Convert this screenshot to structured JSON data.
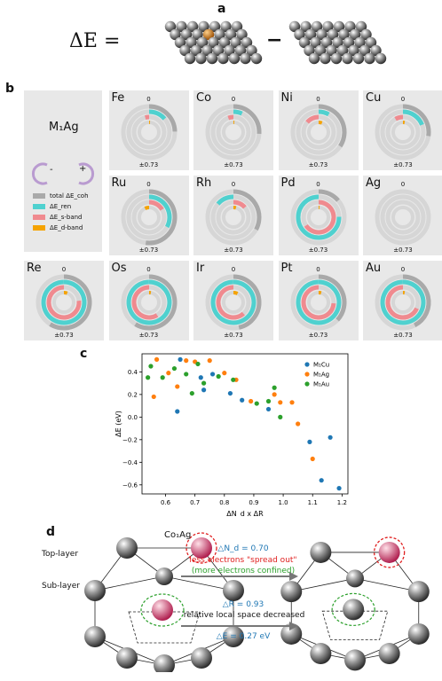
{
  "panel_a": {
    "label": "a",
    "equation_lhs": "ΔE =",
    "minus": "−"
  },
  "panel_b": {
    "label": "b",
    "legend_title": "M₁Ag",
    "legend_minus": "-",
    "legend_plus": "+",
    "legend_items": [
      {
        "label": "total ΔE_coh",
        "color": "#a9a9a9"
      },
      {
        "label": "ΔE_ren",
        "color": "#4fd1cf"
      },
      {
        "label": "ΔE_s-band",
        "color": "#f08a8f"
      },
      {
        "label": "ΔE_d-band",
        "color": "#f5a300"
      }
    ],
    "zero_label": "0",
    "range_label": "±0.73",
    "elements": [
      {
        "name": "Fe",
        "total": 0.18,
        "ren": 0.1,
        "s": -0.03,
        "d": 0.01
      },
      {
        "name": "Co",
        "total": 0.19,
        "ren": 0.05,
        "s": -0.04,
        "d": 0.01
      },
      {
        "name": "Ni",
        "total": 0.25,
        "ren": 0.06,
        "s": -0.1,
        "d": 0.04
      },
      {
        "name": "Cu",
        "total": 0.2,
        "ren": 0.14,
        "s": -0.06,
        "d": 0.02
      },
      {
        "name": "Ru",
        "total": 0.38,
        "ren": 0.24,
        "s": 0.12,
        "d": -0.05
      },
      {
        "name": "Rh",
        "total": 0.24,
        "ren": -0.1,
        "s": 0.1,
        "d": 0.03
      },
      {
        "name": "Pd",
        "total": 0.1,
        "ren": -0.55,
        "s": 0.48,
        "d": 0.01
      },
      {
        "name": "Ag",
        "total": 0,
        "ren": 0,
        "s": 0,
        "d": 0
      },
      {
        "name": "Re",
        "total": 0.43,
        "ren": 0.92,
        "s": -0.56,
        "d": 0.04
      },
      {
        "name": "Os",
        "total": 0.43,
        "ren": 0.96,
        "s": -0.43,
        "d": 0.02
      },
      {
        "name": "Ir",
        "total": 0.34,
        "ren": 0.88,
        "s": -0.45,
        "d": 0.05
      },
      {
        "name": "Pt",
        "total": 0.27,
        "ren": 0.76,
        "s": -0.54,
        "d": 0.03
      },
      {
        "name": "Au",
        "total": 0.31,
        "ren": 0.79,
        "s": -0.5,
        "d": 0.02
      }
    ]
  },
  "panel_c": {
    "label": "c"
  },
  "chart_data": {
    "type": "scatter",
    "xlabel": "ΔN_d x ΔR",
    "ylabel": "ΔE (eV)",
    "xlim": [
      0.52,
      1.22
    ],
    "ylim": [
      -0.68,
      0.56
    ],
    "xticks": [
      0.6,
      0.7,
      0.8,
      0.9,
      1.0,
      1.1,
      1.2
    ],
    "yticks": [
      0.4,
      0.2,
      0.0,
      -0.2,
      -0.4,
      -0.6
    ],
    "xtick_labels": [
      "0.6",
      "0.7",
      "0.8",
      "0.9",
      "1.0",
      "1.1",
      "1.2"
    ],
    "ytick_labels": [
      "0.4",
      "0.2",
      "0.0",
      "−0.2",
      "−0.4",
      "−0.6"
    ],
    "legend_position": "top-right",
    "series": [
      {
        "name": "M₁Cu",
        "color": "#1f77b4",
        "points": [
          [
            0.64,
            0.05
          ],
          [
            0.65,
            0.51
          ],
          [
            0.72,
            0.35
          ],
          [
            0.73,
            0.24
          ],
          [
            0.76,
            0.38
          ],
          [
            0.82,
            0.21
          ],
          [
            0.86,
            0.15
          ],
          [
            0.95,
            0.07
          ],
          [
            1.09,
            -0.22
          ],
          [
            1.13,
            -0.56
          ],
          [
            1.16,
            -0.18
          ],
          [
            1.19,
            -0.63
          ]
        ]
      },
      {
        "name": "M₁Ag",
        "color": "#ff7f0e",
        "points": [
          [
            0.56,
            0.18
          ],
          [
            0.57,
            0.51
          ],
          [
            0.61,
            0.39
          ],
          [
            0.64,
            0.27
          ],
          [
            0.67,
            0.5
          ],
          [
            0.7,
            0.49
          ],
          [
            0.75,
            0.5
          ],
          [
            0.8,
            0.39
          ],
          [
            0.84,
            0.33
          ],
          [
            0.89,
            0.14
          ],
          [
            0.97,
            0.2
          ],
          [
            0.99,
            0.13
          ],
          [
            1.03,
            0.13
          ],
          [
            1.05,
            -0.06
          ],
          [
            1.1,
            -0.37
          ]
        ]
      },
      {
        "name": "M₁Au",
        "color": "#2ca02c",
        "points": [
          [
            0.54,
            0.35
          ],
          [
            0.55,
            0.45
          ],
          [
            0.59,
            0.35
          ],
          [
            0.63,
            0.43
          ],
          [
            0.67,
            0.38
          ],
          [
            0.69,
            0.21
          ],
          [
            0.71,
            0.47
          ],
          [
            0.73,
            0.3
          ],
          [
            0.78,
            0.36
          ],
          [
            0.83,
            0.33
          ],
          [
            0.91,
            0.12
          ],
          [
            0.95,
            0.14
          ],
          [
            0.97,
            0.26
          ],
          [
            0.99,
            0.0
          ]
        ]
      }
    ]
  },
  "panel_d": {
    "label": "d",
    "top_layer": "Top-layer",
    "sub_layer": "Sub-layer",
    "title": "Co₁Ag",
    "dn_text": "△N_d = 0.70",
    "spread_text": "less electrons \"spread out\"",
    "confined_text": "(more electrons confined)",
    "dr_text": "△R = 0.93",
    "space_text": "relative local space decreased",
    "de_text": "△E = 0.27 eV"
  }
}
